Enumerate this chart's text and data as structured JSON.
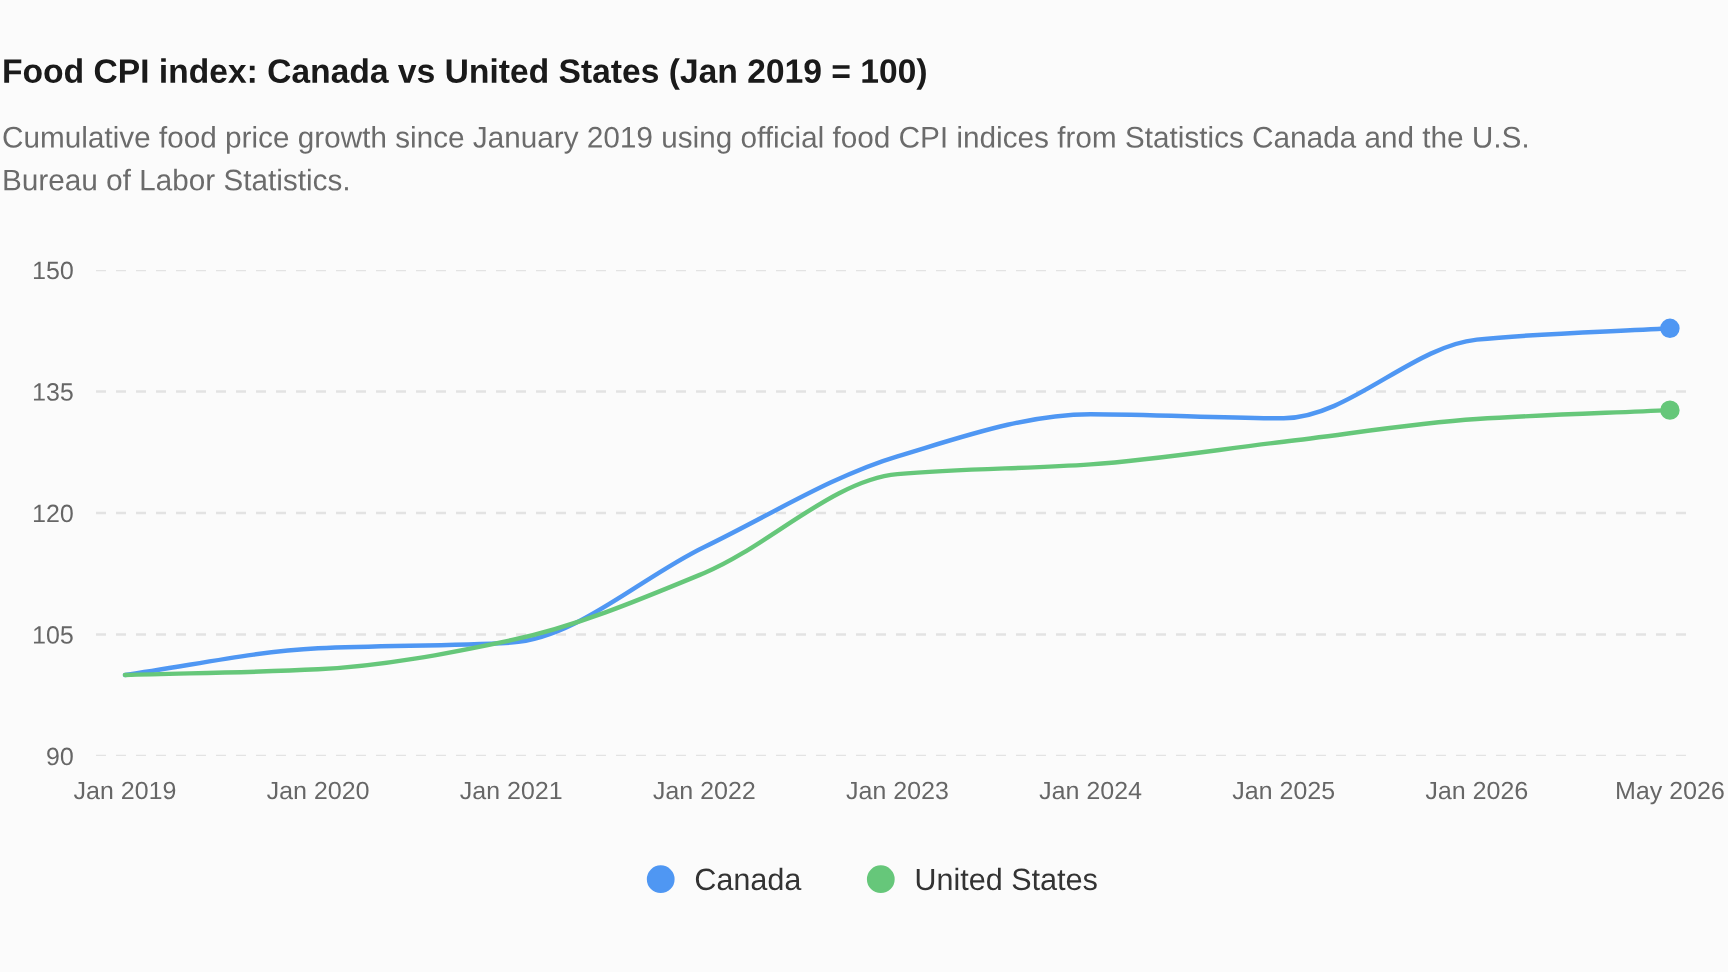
{
  "chart_data": {
    "type": "line",
    "title": "Food CPI index: Canada vs United States (Jan 2019 = 100)",
    "subtitle": "Cumulative food price growth since January 2019 using official food CPI indices from Statistics Canada and the U.S. Bureau of Labor Statistics.",
    "categories": [
      "Jan 2019",
      "Jan 2020",
      "Jan 2021",
      "Jan 2022",
      "Jan 2023",
      "Jan 2024",
      "Jan 2025",
      "Jan 2026",
      "May 2026"
    ],
    "series": [
      {
        "name": "Canada",
        "color": "#4f97f3",
        "values": [
          100,
          103.3,
          104.0,
          115.8,
          127.0,
          132.2,
          131.7,
          141.4,
          142.8
        ]
      },
      {
        "name": "United States",
        "color": "#66c77a",
        "values": [
          100,
          100.7,
          104.3,
          112.6,
          124.8,
          126.0,
          128.8,
          131.6,
          132.7
        ]
      },
      {
        "type": "scatter",
        "color": "#4f97f3",
        "values": [
          null,
          null,
          null,
          null,
          null,
          null,
          null,
          null,
          142.8
        ]
      },
      {
        "type": "scatter",
        "color": "#66c77a",
        "values": [
          null,
          null,
          null,
          null,
          null,
          null,
          null,
          null,
          132.7
        ]
      }
    ],
    "ylim": [
      90,
      150
    ],
    "yticks": [
      90,
      105,
      120,
      135,
      150
    ],
    "grid": "y",
    "legend": "bottom"
  }
}
